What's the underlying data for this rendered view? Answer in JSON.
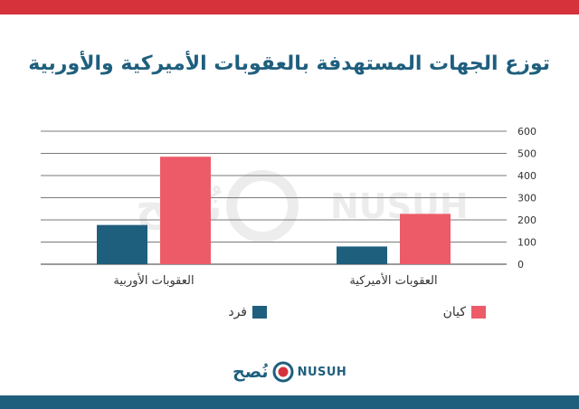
{
  "colors": {
    "top_bar": "#d5323b",
    "bottom_bar": "#1f5f7e",
    "series_person": "#1f5f7e",
    "series_entity": "#ed5b69",
    "title": "#1f5f7e",
    "grid": "#7a7a7a"
  },
  "watermark": {
    "arabic": "نُصح",
    "english": "NUSUH"
  },
  "logo": {
    "arabic": "نُصح",
    "english": "NUSUH",
    "icon": "circle-target-icon"
  },
  "chart_data": {
    "type": "bar",
    "title": "توزع الجهات المستهدفة بالعقوبات الأميركية والأوربية",
    "categories": [
      "العقوبات الأميركية",
      "العقوبات الأوربية"
    ],
    "series": [
      {
        "name": "فرد",
        "values": [
          80,
          177
        ]
      },
      {
        "name": "كيان",
        "values": [
          227,
          485
        ]
      }
    ],
    "yticks": [
      "0",
      "100",
      "200",
      "300",
      "400",
      "500",
      "600"
    ],
    "ylim": [
      0,
      600
    ],
    "grid": true,
    "legend_position": "bottom"
  }
}
